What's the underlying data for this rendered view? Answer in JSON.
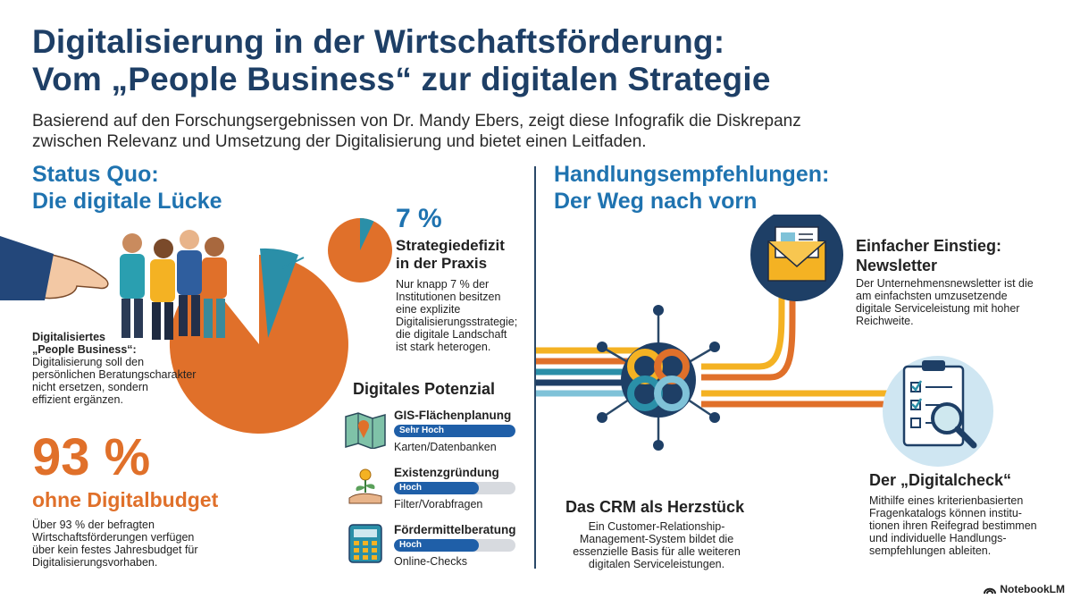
{
  "header": {
    "title_line1": "Digitalisierung in der Wirtschaftsförderung:",
    "title_line2": "Vom „People Business“ zur digitalen Strategie",
    "intro_line1": "Basierend auf den Forschungsergebnissen von Dr. Mandy Ebers, zeigt diese Infografik die Diskrepanz",
    "intro_line2": "zwischen Relevanz und Umsetzung der Digitalisierung und bietet einen Leitfaden."
  },
  "left": {
    "heading_line1": "Status Quo:",
    "heading_line2": "Die digitale Lücke",
    "people_business": {
      "title_line1": "Digitalisiertes",
      "title_line2": "„People Business“:",
      "text_line1": "Digitalisierung soll den",
      "text_line2": "persönlichen Beratungscharakter",
      "text_line3": "nicht ersetzen, sondern",
      "text_line4": "effizient ergänzen."
    },
    "budget": {
      "value": "93 %",
      "label": "ohne Digitalbudget",
      "text_line1": "Über 93 % der befragten",
      "text_line2": "Wirtschaftsförderungen verfügen",
      "text_line3": "über kein festes Jahresbudget für",
      "text_line4": "Digitalisierungsvorhaben."
    },
    "strategy": {
      "value": "7 %",
      "title_line1": "Strategiedefizit",
      "title_line2": "in der Praxis",
      "text_line1": "Nur knapp 7 % der",
      "text_line2": "Institutionen besitzen",
      "text_line3": "eine explizite",
      "text_line4": "Digitalisierungsstrategie;",
      "text_line5": "die digitale Landschaft",
      "text_line6": "ist stark heterogen."
    },
    "pie": {
      "share_with_strategy_percent": 7,
      "share_without_budget_percent": 93,
      "color_main": "#e0702a",
      "color_slice": "#2a8fa8"
    },
    "potential": {
      "heading": "Digitales Potenzial",
      "items": [
        {
          "label": "GIS-Flächenplanung",
          "level": "Sehr Hoch",
          "fill_percent": 100,
          "sub": "Karten/Datenbanken",
          "icon": "map-icon"
        },
        {
          "label": "Existenzgründung",
          "level": "Hoch",
          "fill_percent": 70,
          "sub": "Filter/Vorabfragen",
          "icon": "sprout-icon"
        },
        {
          "label": "Fördermittelberatung",
          "level": "Hoch",
          "fill_percent": 70,
          "sub": "Online-Checks",
          "icon": "calculator-icon"
        }
      ]
    }
  },
  "right": {
    "heading_line1": "Handlungsempfehlungen:",
    "heading_line2": "Der Weg nach vorn",
    "newsletter": {
      "title_line1": "Einfacher Einstieg:",
      "title_line2": "Newsletter",
      "text_line1": "Der Unternehmensnewsletter ist die",
      "text_line2": "am einfachsten umzusetzende",
      "text_line3": "digitale Serviceleistung mit hoher",
      "text_line4": "Reichweite."
    },
    "crm": {
      "title": "Das CRM als Herzstück",
      "text_line1": "Ein Customer-Relationship-",
      "text_line2": "Management-System bildet die",
      "text_line3": "essenzielle Basis für alle weiteren",
      "text_line4": "digitalen Serviceleistungen."
    },
    "check": {
      "title": "Der „Digitalcheck“",
      "text_line1": "Mithilfe eines kriterienbasierten",
      "text_line2": "Fragenkatalogs können institu-",
      "text_line3": "tionen ihren Reifegrad bestimmen",
      "text_line4": "und individuelle Handlungs-",
      "text_line5": "sempfehlungen ableiten."
    }
  },
  "footer": {
    "brand": "NotebookLM"
  },
  "colors": {
    "navy": "#1e3f66",
    "blue": "#1f73b0",
    "orange": "#e0702a",
    "teal": "#2a8fa8",
    "yellow": "#f4b223"
  }
}
